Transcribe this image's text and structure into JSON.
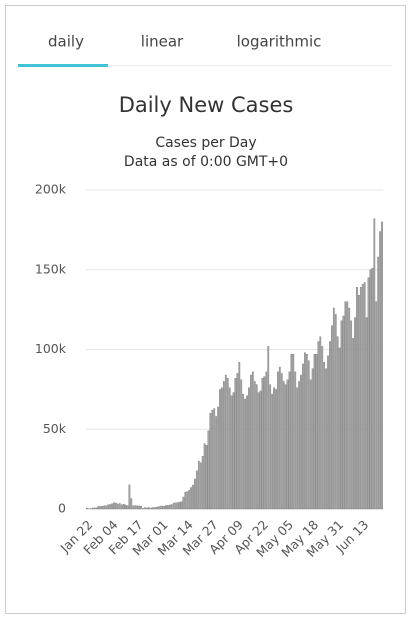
{
  "tabs": [
    "daily",
    "linear",
    "logarithmic"
  ],
  "chart_data": {
    "type": "bar",
    "title": "Daily New Cases",
    "subtitle": [
      "Cases per Day",
      "Data as of 0:00 GMT+0"
    ],
    "color": "#a6a6a6",
    "grid": true,
    "ylim": [
      0,
      200000
    ],
    "yticks": [
      0,
      {
        "value": 50000,
        "label": "50k"
      },
      {
        "value": 100000,
        "label": "100k"
      },
      {
        "value": 150000,
        "label": "150k"
      },
      {
        "value": 200000,
        "label": "200k"
      }
    ],
    "categories": [
      "Jan 22",
      null,
      null,
      null,
      null,
      null,
      null,
      null,
      null,
      null,
      null,
      null,
      null,
      "Feb 04",
      null,
      null,
      null,
      null,
      null,
      null,
      null,
      null,
      null,
      null,
      null,
      null,
      "Feb 17",
      null,
      null,
      null,
      null,
      null,
      null,
      null,
      null,
      null,
      null,
      null,
      null,
      "Mar 01",
      null,
      null,
      null,
      null,
      null,
      null,
      null,
      null,
      null,
      null,
      null,
      null,
      "Mar 14",
      null,
      null,
      null,
      null,
      null,
      null,
      null,
      null,
      null,
      null,
      null,
      null,
      "Mar 27",
      null,
      null,
      null,
      null,
      null,
      null,
      null,
      null,
      null,
      null,
      null,
      null,
      "Apr 09",
      null,
      null,
      null,
      null,
      null,
      null,
      null,
      null,
      null,
      null,
      null,
      null,
      "Apr 22",
      null,
      null,
      null,
      null,
      null,
      null,
      null,
      null,
      null,
      null,
      null,
      null,
      "May 05",
      null,
      null,
      null,
      null,
      null,
      null,
      null,
      null,
      null,
      null,
      null,
      null,
      "May 18",
      null,
      null,
      null,
      null,
      null,
      null,
      null,
      null,
      null,
      null,
      null,
      null,
      "May 31",
      null,
      null,
      null,
      null,
      null,
      null,
      null,
      null,
      null,
      null,
      null,
      null,
      "Jun 13",
      null,
      null,
      null,
      null,
      null,
      null,
      null,
      null,
      null,
      null
    ],
    "values": [
      555,
      100,
      280,
      660,
      690,
      790,
      1770,
      1480,
      1750,
      2010,
      2120,
      2610,
      2830,
      3240,
      3910,
      3740,
      3160,
      3440,
      2620,
      2980,
      2540,
      2020,
      15150,
      6510,
      2050,
      2110,
      2050,
      1900,
      1750,
      400,
      900,
      650,
      1000,
      550,
      900,
      850,
      1100,
      1400,
      1800,
      1900,
      1800,
      2200,
      2300,
      2600,
      2800,
      3700,
      3900,
      4000,
      4300,
      4600,
      7500,
      10500,
      10900,
      11700,
      13500,
      15000,
      18800,
      24000,
      30000,
      29000,
      33000,
      41000,
      40000,
      49000,
      60000,
      62000,
      63000,
      58000,
      64000,
      75000,
      76000,
      80000,
      84000,
      82000,
      76000,
      71000,
      73000,
      82000,
      85000,
      92000,
      81000,
      72000,
      69000,
      71000,
      76000,
      84000,
      86000,
      80000,
      78000,
      73000,
      74000,
      82000,
      83000,
      86000,
      102000,
      78000,
      72000,
      76000,
      75000,
      86000,
      89000,
      85000,
      80000,
      78000,
      81000,
      86000,
      97000,
      97000,
      86000,
      76000,
      80000,
      84000,
      91000,
      98000,
      97000,
      93000,
      81000,
      88000,
      97000,
      97000,
      105000,
      108000,
      102000,
      92000,
      88000,
      96000,
      105000,
      115000,
      126000,
      122000,
      108000,
      101000,
      118000,
      121000,
      130000,
      130000,
      126000,
      118000,
      107000,
      120000,
      139000,
      134000,
      139000,
      141000,
      142000,
      120000,
      145000,
      150000,
      151000,
      182000,
      130000,
      158000,
      174000,
      180000
    ]
  }
}
